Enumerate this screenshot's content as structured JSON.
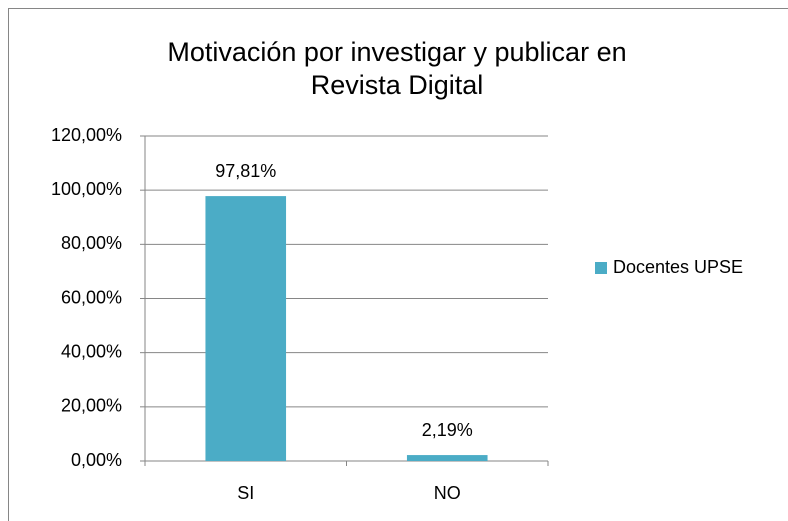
{
  "chart_data": {
    "type": "bar",
    "title": "Motivación por investigar y publicar en Revista Digital",
    "categories": [
      "SI",
      "NO"
    ],
    "series": [
      {
        "name": "Docentes UPSE",
        "color": "#4bacc6",
        "values": [
          97.81,
          2.19
        ],
        "value_labels": [
          "97,81%",
          "2,19%"
        ]
      }
    ],
    "ylim": [
      0,
      120
    ],
    "yticks": [
      {
        "value": 0,
        "label": "0,00%"
      },
      {
        "value": 20,
        "label": "20,00%"
      },
      {
        "value": 40,
        "label": "40,00%"
      },
      {
        "value": 60,
        "label": "60,00%"
      },
      {
        "value": 80,
        "label": "80,00%"
      },
      {
        "value": 100,
        "label": "100,00%"
      },
      {
        "value": 120,
        "label": "120,00%"
      }
    ],
    "grid": true,
    "legend": "right"
  }
}
